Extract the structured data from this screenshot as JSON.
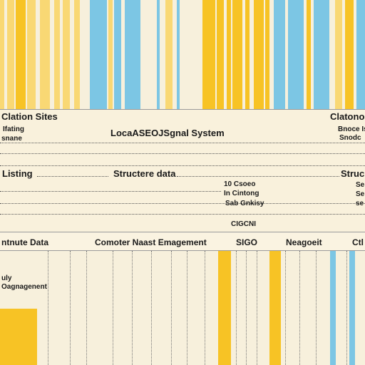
{
  "colors": {
    "background": "#f7f0dc",
    "band": "#f9f1dc",
    "yellow": "#f7c325",
    "light_yellow": "#f9d874",
    "blue": "#7cc6e4",
    "text": "#1a1a1a"
  },
  "header": {
    "left_title": "Clation Sites",
    "right_title": "Clatono",
    "system_title": "LocaASEOJSgnal System",
    "left_sub_1": "Ifating",
    "left_sub_2": "snane",
    "right_sub_1": "Bnoce Is",
    "right_sub_2": "Snodc"
  },
  "row_listing": {
    "listing": "Listing",
    "structure": "Structere data",
    "right_label": "Struc",
    "sub_1": "10 Csoeo",
    "sub_2": "In Cintong",
    "sub_3": "Sab Gnkisy",
    "right_sub_1": "Se",
    "right_sub_2": "Se",
    "right_sub_3": "se"
  },
  "row_columns": {
    "top_label": "CIGCNI",
    "c1": "ntnute Data",
    "c2": "Comoter Naast Emagement",
    "c3": "SIGO",
    "c4": "Neagoeit",
    "c5": "Ctl"
  },
  "lower": {
    "line1": "uly",
    "line2": "Oagnagenent"
  }
}
